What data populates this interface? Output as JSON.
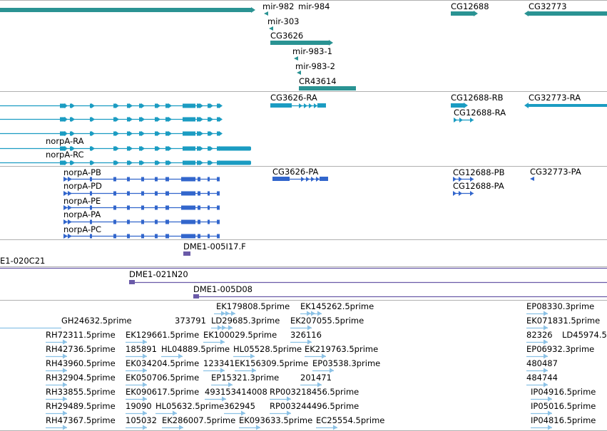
{
  "colors": {
    "gene": "#2a9393",
    "mrna": "#1b9cc2",
    "cds": "#3266cc",
    "clone": "#6a5aa8",
    "est": "#8cc2e6",
    "divider": "#b0b0b0"
  },
  "tracks": {
    "gene_span": {
      "features": [
        {
          "name": "",
          "color": "gene"
        },
        {
          "name": "mir-982",
          "color": "gene"
        },
        {
          "name": "mir-984",
          "color": "gene"
        },
        {
          "name": "mir-303",
          "color": "gene"
        },
        {
          "name": "CG3626",
          "color": "gene"
        },
        {
          "name": "mir-983-1",
          "color": "gene"
        },
        {
          "name": "mir-983-2",
          "color": "gene"
        },
        {
          "name": "CR43614",
          "color": "gene"
        },
        {
          "name": "CG12688",
          "color": "gene"
        },
        {
          "name": "CG32773",
          "color": "gene"
        }
      ]
    },
    "transcripts": {
      "features": [
        {
          "name": "",
          "color": "mrna"
        },
        {
          "name": "",
          "color": "mrna"
        },
        {
          "name": "",
          "color": "mrna"
        },
        {
          "name": "norpA-RA",
          "color": "mrna"
        },
        {
          "name": "norpA-RC",
          "color": "mrna"
        },
        {
          "name": "CG3626-RA",
          "color": "mrna"
        },
        {
          "name": "CG12688-RB",
          "color": "mrna"
        },
        {
          "name": "CG12688-RA",
          "color": "mrna"
        },
        {
          "name": "CG32773-RA",
          "color": "mrna"
        }
      ]
    },
    "proteins": {
      "features": [
        {
          "name": "norpA-PB",
          "color": "cds"
        },
        {
          "name": "norpA-PD",
          "color": "cds"
        },
        {
          "name": "norpA-PE",
          "color": "cds"
        },
        {
          "name": "norpA-PA",
          "color": "cds"
        },
        {
          "name": "norpA-PC",
          "color": "cds"
        },
        {
          "name": "CG3626-PA",
          "color": "cds"
        },
        {
          "name": "CG12688-PB",
          "color": "cds"
        },
        {
          "name": "CG12688-PA",
          "color": "cds"
        },
        {
          "name": "CG32773-PA",
          "color": "cds"
        }
      ]
    },
    "clone_end": {
      "features": [
        {
          "name": "DME1-005I17.F",
          "color": "clone"
        }
      ]
    },
    "clones": {
      "features": [
        {
          "name": "E1-020C21",
          "color": "clone"
        },
        {
          "name": "DME1-021N20",
          "color": "clone"
        },
        {
          "name": "DME1-005D08",
          "color": "clone"
        }
      ]
    },
    "ests": {
      "features": [
        {
          "name": "EK179808.5prime",
          "color": "est"
        },
        {
          "name": "EK145262.5prime",
          "color": "est"
        },
        {
          "name": "EP08330.3prime",
          "color": "est"
        },
        {
          "name": "GH24632.5prime",
          "color": "est"
        },
        {
          "name": "373791",
          "color": "est"
        },
        {
          "name": "LD29685.3prime",
          "color": "est"
        },
        {
          "name": "EK207055.5prime",
          "color": "est"
        },
        {
          "name": "EK071831.5prime",
          "color": "est"
        },
        {
          "name": "RH72311.5prime",
          "color": "est"
        },
        {
          "name": "EK129661.5prime",
          "color": "est"
        },
        {
          "name": "EK100029.5prime",
          "color": "est"
        },
        {
          "name": "326116",
          "color": "est"
        },
        {
          "name": "82326",
          "color": "est"
        },
        {
          "name": "LD45974.5",
          "color": "est"
        },
        {
          "name": "RH42736.5prime",
          "color": "est"
        },
        {
          "name": "185891",
          "color": "est"
        },
        {
          "name": "HL04889.5prime",
          "color": "est"
        },
        {
          "name": "HL05528.5prime",
          "color": "est"
        },
        {
          "name": "EK219763.5prime",
          "color": "est"
        },
        {
          "name": "EP06932.3prime",
          "color": "est"
        },
        {
          "name": "RH43960.5prime",
          "color": "est"
        },
        {
          "name": "EK034204.5prime",
          "color": "est"
        },
        {
          "name": "123341",
          "color": "est"
        },
        {
          "name": "EK156309.5prime",
          "color": "est"
        },
        {
          "name": "EP03538.3prime",
          "color": "est"
        },
        {
          "name": "480487",
          "color": "est"
        },
        {
          "name": "RH32904.5prime",
          "color": "est"
        },
        {
          "name": "EK050706.5prime",
          "color": "est"
        },
        {
          "name": "EP15321.3prime",
          "color": "est"
        },
        {
          "name": "201471",
          "color": "est"
        },
        {
          "name": "484744",
          "color": "est"
        },
        {
          "name": "RH33855.5prime",
          "color": "est"
        },
        {
          "name": "EK090617.5prime",
          "color": "est"
        },
        {
          "name": "493153414008",
          "color": "est"
        },
        {
          "name": "RP003218456.5prime",
          "color": "est"
        },
        {
          "name": "IP04916.5prime",
          "color": "est"
        },
        {
          "name": "RH29489.5prime",
          "color": "est"
        },
        {
          "name": "19090",
          "color": "est"
        },
        {
          "name": "HL05632.5prime",
          "color": "est"
        },
        {
          "name": "362945",
          "color": "est"
        },
        {
          "name": "RP003244496.5prime",
          "color": "est"
        },
        {
          "name": "IP05016.5prime",
          "color": "est"
        },
        {
          "name": "RH47367.5prime",
          "color": "est"
        },
        {
          "name": "105032",
          "color": "est"
        },
        {
          "name": "EK286007.5prime",
          "color": "est"
        },
        {
          "name": "EK093633.5prime",
          "color": "est"
        },
        {
          "name": "EC25554.5prime",
          "color": "est"
        },
        {
          "name": "IP04816.5prime",
          "color": "est"
        }
      ]
    }
  }
}
